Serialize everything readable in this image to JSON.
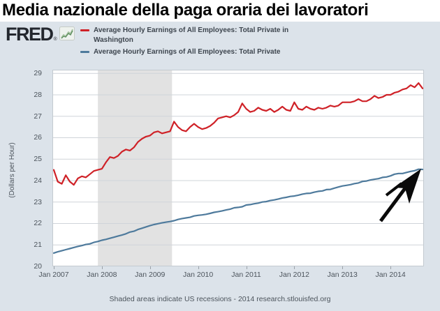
{
  "page_title": "Media nazionale della paga oraria dei lavoratori",
  "brand": {
    "logo_text": "FRED",
    "reg_mark": "®",
    "logo_color": "#23272e",
    "icon": "sparkline-icon"
  },
  "legend": [
    {
      "lines": [
        "Average Hourly Earnings of All Employees: Total Private in",
        "Washington"
      ]
    },
    {
      "lines": [
        "Average Hourly Earnings of All Employees: Total Private"
      ]
    }
  ],
  "footer_note": "Shaded areas indicate US recessions - 2014 research.stlouisfed.org",
  "colors": {
    "background": "#dce3ea",
    "plot_background": "#ffffff",
    "grid": "#cfd4d9",
    "plot_border": "#c3cad0",
    "recession_band": "#e2e2e2",
    "axis_text": "#4c545c",
    "annotation_arrow": "#0a0a0a"
  },
  "chart_data": {
    "type": "line",
    "title": "",
    "xlabel": "",
    "ylabel": "(Dollars per Hour)",
    "ylim": [
      20,
      29.17
    ],
    "yticks": [
      20,
      21,
      22,
      23,
      24,
      25,
      26,
      27,
      28,
      29
    ],
    "x_frequency": "monthly",
    "x_start": "Jan 2007",
    "x_end": "Sep 2014",
    "x_tick_labels": [
      "Jan 2007",
      "Jan 2008",
      "Jan 2009",
      "Jan 2010",
      "Jan 2011",
      "Jan 2012",
      "Jan 2013",
      "Jan 2014"
    ],
    "x_tick_month_indices": [
      0,
      12,
      24,
      36,
      48,
      60,
      72,
      84
    ],
    "grid": true,
    "legend_position": "top",
    "recession_band": {
      "label": "US recession",
      "from": "Dec 2007",
      "to": "Jun 2009",
      "start_month_index": 11,
      "end_month_index": 29.5
    },
    "series": [
      {
        "name": "Average Hourly Earnings of All Employees: Total Private in Washington",
        "color": "#cf2127",
        "values": [
          24.5,
          23.95,
          23.85,
          24.25,
          23.95,
          23.8,
          24.1,
          24.2,
          24.15,
          24.3,
          24.45,
          24.5,
          24.55,
          24.85,
          25.1,
          25.05,
          25.15,
          25.35,
          25.45,
          25.4,
          25.55,
          25.8,
          25.95,
          26.05,
          26.1,
          26.25,
          26.3,
          26.2,
          26.25,
          26.3,
          26.75,
          26.5,
          26.35,
          26.3,
          26.5,
          26.65,
          26.5,
          26.4,
          26.45,
          26.55,
          26.7,
          26.9,
          26.95,
          27.0,
          26.95,
          27.05,
          27.2,
          27.6,
          27.35,
          27.2,
          27.25,
          27.4,
          27.3,
          27.25,
          27.35,
          27.2,
          27.3,
          27.45,
          27.3,
          27.25,
          27.65,
          27.35,
          27.3,
          27.45,
          27.35,
          27.3,
          27.4,
          27.35,
          27.4,
          27.5,
          27.45,
          27.5,
          27.65,
          27.65,
          27.65,
          27.7,
          27.8,
          27.7,
          27.7,
          27.8,
          27.95,
          27.85,
          27.9,
          28.0,
          28.0,
          28.1,
          28.15,
          28.25,
          28.3,
          28.45,
          28.35,
          28.55,
          28.3
        ]
      },
      {
        "name": "Average Hourly Earnings of All Employees: Total Private",
        "color": "#4e7a9c",
        "values": [
          20.62,
          20.68,
          20.73,
          20.78,
          20.83,
          20.88,
          20.93,
          20.97,
          21.02,
          21.05,
          21.12,
          21.16,
          21.22,
          21.26,
          21.31,
          21.36,
          21.41,
          21.46,
          21.52,
          21.6,
          21.64,
          21.72,
          21.78,
          21.84,
          21.9,
          21.95,
          21.99,
          22.03,
          22.06,
          22.09,
          22.13,
          22.19,
          22.23,
          22.26,
          22.29,
          22.35,
          22.38,
          22.4,
          22.43,
          22.47,
          22.52,
          22.55,
          22.59,
          22.63,
          22.67,
          22.73,
          22.75,
          22.78,
          22.86,
          22.88,
          22.92,
          22.95,
          23.0,
          23.02,
          23.07,
          23.1,
          23.14,
          23.19,
          23.22,
          23.26,
          23.28,
          23.32,
          23.37,
          23.4,
          23.41,
          23.46,
          23.5,
          23.52,
          23.58,
          23.59,
          23.65,
          23.7,
          23.75,
          23.78,
          23.81,
          23.86,
          23.89,
          23.96,
          23.98,
          24.03,
          24.06,
          24.09,
          24.15,
          24.17,
          24.22,
          24.3,
          24.33,
          24.33,
          24.38,
          24.43,
          24.46,
          24.53,
          24.52
        ]
      }
    ],
    "annotation": {
      "type": "hand-drawn-arrow",
      "points_at": "end of national series (~$24.5, Sep 2014)"
    }
  }
}
